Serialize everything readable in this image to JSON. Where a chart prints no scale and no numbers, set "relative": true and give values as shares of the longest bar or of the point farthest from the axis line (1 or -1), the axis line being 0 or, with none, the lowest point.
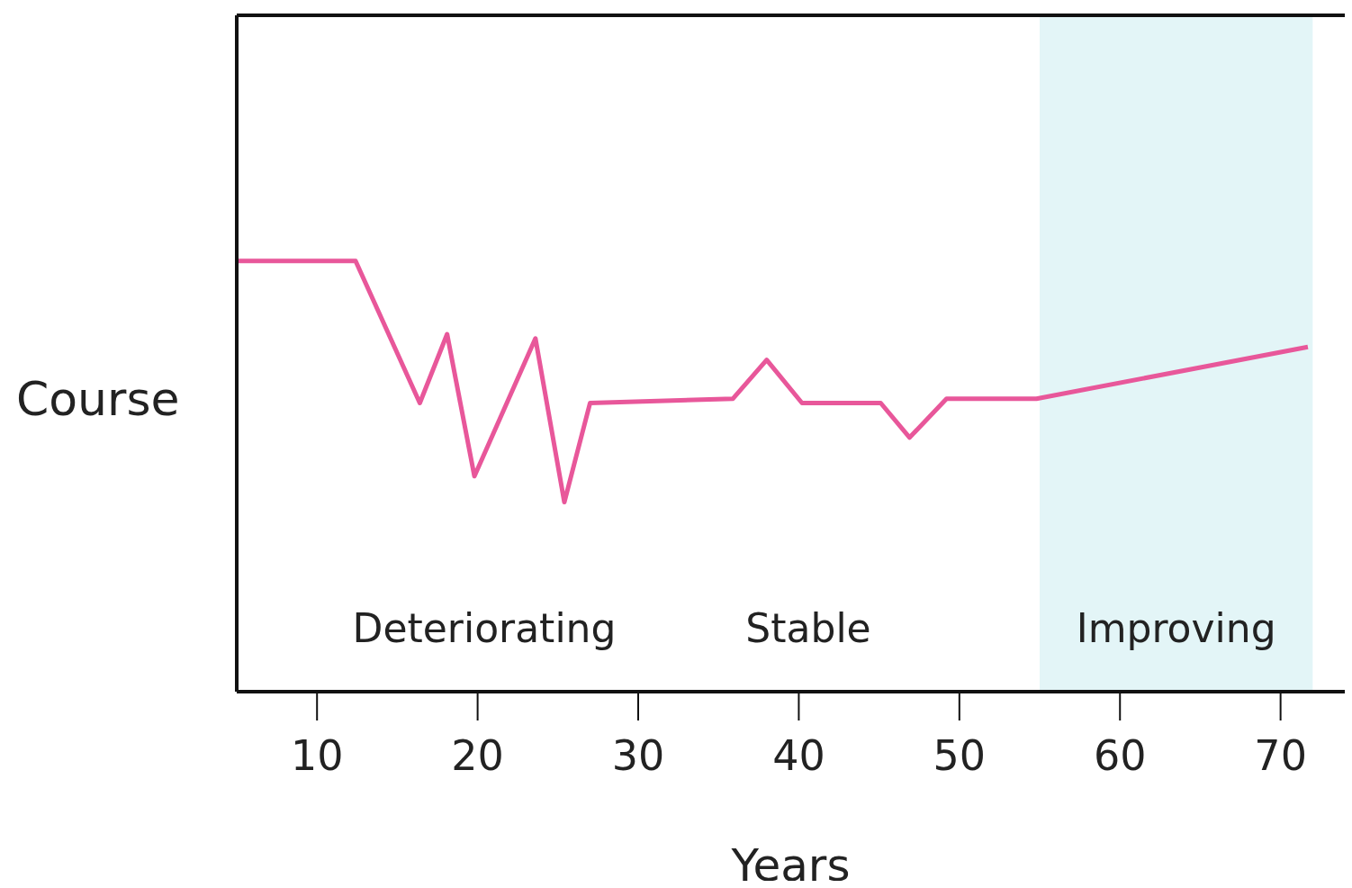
{
  "chart_data": {
    "type": "line",
    "xlabel": "Years",
    "ylabel": "Course",
    "relative": true,
    "x": [
      5,
      12.4,
      16.4,
      18.1,
      19.8,
      23.6,
      25.4,
      27,
      35.9,
      38,
      40.2,
      45.1,
      46.9,
      49.2,
      54.8,
      71.7
    ],
    "series": [
      {
        "color": "#e8579a",
        "values": [
          1,
          1,
          0.67,
          0.83,
          0.5,
          0.82,
          0.44,
          0.67,
          0.68,
          0.77,
          0.67,
          0.67,
          0.59,
          0.68,
          0.68,
          0.8
        ]
      }
    ],
    "xlim": [
      5,
      74
    ],
    "xticks": [
      10,
      20,
      30,
      40,
      50,
      60,
      70
    ],
    "bands": [
      {
        "axis": "x",
        "from": 55,
        "to": 72,
        "color": "#e3f5f7",
        "label": "Improving"
      }
    ],
    "annotations": [
      "Deteriorating",
      "Stable"
    ],
    "grid": false,
    "legend": false,
    "marker": "none",
    "line_style": "solid"
  }
}
